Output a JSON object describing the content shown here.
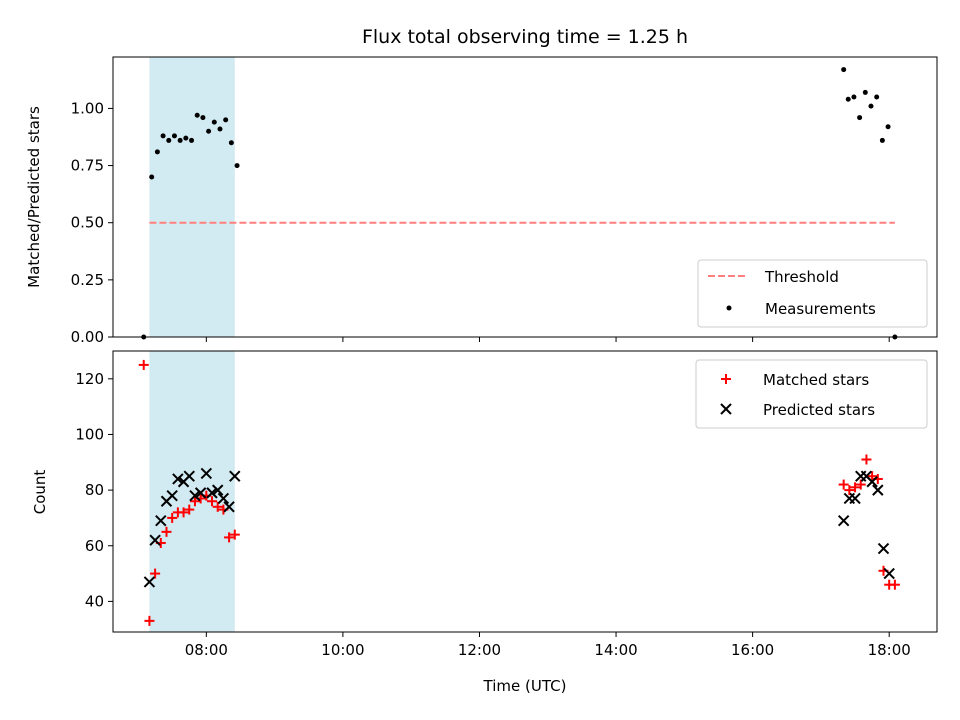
{
  "chart_data": [
    {
      "type": "scatter",
      "title": "Flux total observing time = 1.25 h",
      "xlabel": "",
      "ylabel": "Matched/Predicted stars",
      "ylim": [
        0,
        1.225
      ],
      "yticks": [
        0.0,
        0.25,
        0.5,
        0.75,
        1.0
      ],
      "ytick_labels": [
        "0.00",
        "0.25",
        "0.50",
        "0.75",
        "1.00"
      ],
      "xlim": [
        "06:38",
        "18:42"
      ],
      "xticks": [
        "08:00",
        "10:00",
        "12:00",
        "14:00",
        "16:00",
        "18:00"
      ],
      "grid": false,
      "legend_placement": "lower-right",
      "shaded_span": {
        "start": "07:10",
        "end": "08:25",
        "color": "#add8e6"
      },
      "threshold": {
        "name": "Threshold",
        "value": 0.5,
        "x_start": "07:10",
        "x_end": "18:05",
        "color": "#ff7f7f",
        "style": "dashed"
      },
      "series": [
        {
          "name": "Measurements",
          "color": "#000000",
          "marker": "dot",
          "points": [
            [
              "07:05",
              0.0
            ],
            [
              "07:12",
              0.7
            ],
            [
              "07:17",
              0.81
            ],
            [
              "07:22",
              0.88
            ],
            [
              "07:27",
              0.86
            ],
            [
              "07:32",
              0.88
            ],
            [
              "07:37",
              0.86
            ],
            [
              "07:42",
              0.87
            ],
            [
              "07:47",
              0.86
            ],
            [
              "07:52",
              0.97
            ],
            [
              "07:57",
              0.96
            ],
            [
              "08:02",
              0.9
            ],
            [
              "08:07",
              0.94
            ],
            [
              "08:12",
              0.91
            ],
            [
              "08:17",
              0.95
            ],
            [
              "08:22",
              0.85
            ],
            [
              "08:27",
              0.75
            ],
            [
              "17:20",
              1.17
            ],
            [
              "17:24",
              1.04
            ],
            [
              "17:29",
              1.05
            ],
            [
              "17:34",
              0.96
            ],
            [
              "17:39",
              1.07
            ],
            [
              "17:44",
              1.01
            ],
            [
              "17:49",
              1.05
            ],
            [
              "17:54",
              0.86
            ],
            [
              "17:59",
              0.92
            ],
            [
              "18:05",
              0.0
            ]
          ]
        }
      ]
    },
    {
      "type": "scatter",
      "title": "",
      "xlabel": "Time (UTC)",
      "ylabel": "Count",
      "ylim": [
        29,
        130
      ],
      "yticks": [
        40,
        60,
        80,
        100,
        120
      ],
      "ytick_labels": [
        "40",
        "60",
        "80",
        "100",
        "120"
      ],
      "xlim": [
        "06:38",
        "18:42"
      ],
      "xticks": [
        "08:00",
        "10:00",
        "12:00",
        "14:00",
        "16:00",
        "18:00"
      ],
      "xtick_labels": [
        "08:00",
        "10:00",
        "12:00",
        "14:00",
        "16:00",
        "18:00"
      ],
      "grid": false,
      "legend_placement": "upper-right",
      "shaded_span": {
        "start": "07:10",
        "end": "08:25",
        "color": "#add8e6"
      },
      "series": [
        {
          "name": "Matched stars",
          "color": "#ff0000",
          "marker": "plus",
          "points": [
            [
              "07:05",
              125
            ],
            [
              "07:10",
              33
            ],
            [
              "07:15",
              50
            ],
            [
              "07:20",
              61
            ],
            [
              "07:25",
              65
            ],
            [
              "07:30",
              70
            ],
            [
              "07:35",
              72
            ],
            [
              "07:40",
              72
            ],
            [
              "07:45",
              73
            ],
            [
              "07:50",
              76
            ],
            [
              "07:55",
              77
            ],
            [
              "08:00",
              78
            ],
            [
              "08:05",
              76
            ],
            [
              "08:10",
              74
            ],
            [
              "08:15",
              73
            ],
            [
              "08:20",
              63
            ],
            [
              "08:25",
              64
            ],
            [
              "17:20",
              82
            ],
            [
              "17:25",
              80
            ],
            [
              "17:30",
              81
            ],
            [
              "17:35",
              82
            ],
            [
              "17:40",
              91
            ],
            [
              "17:45",
              85
            ],
            [
              "17:50",
              84
            ],
            [
              "17:55",
              51
            ],
            [
              "18:00",
              46
            ],
            [
              "18:05",
              46
            ]
          ]
        },
        {
          "name": "Predicted stars",
          "color": "#000000",
          "marker": "x",
          "points": [
            [
              "07:10",
              47
            ],
            [
              "07:15",
              62
            ],
            [
              "07:20",
              69
            ],
            [
              "07:25",
              76
            ],
            [
              "07:30",
              78
            ],
            [
              "07:35",
              84
            ],
            [
              "07:40",
              83
            ],
            [
              "07:45",
              85
            ],
            [
              "07:50",
              78
            ],
            [
              "07:55",
              79
            ],
            [
              "08:00",
              86
            ],
            [
              "08:05",
              79
            ],
            [
              "08:10",
              80
            ],
            [
              "08:15",
              77
            ],
            [
              "08:20",
              74
            ],
            [
              "08:25",
              85
            ],
            [
              "17:20",
              69
            ],
            [
              "17:25",
              77
            ],
            [
              "17:30",
              77
            ],
            [
              "17:35",
              85
            ],
            [
              "17:40",
              85
            ],
            [
              "17:45",
              83
            ],
            [
              "17:50",
              80
            ],
            [
              "17:55",
              59
            ],
            [
              "18:00",
              50
            ]
          ]
        }
      ]
    }
  ]
}
